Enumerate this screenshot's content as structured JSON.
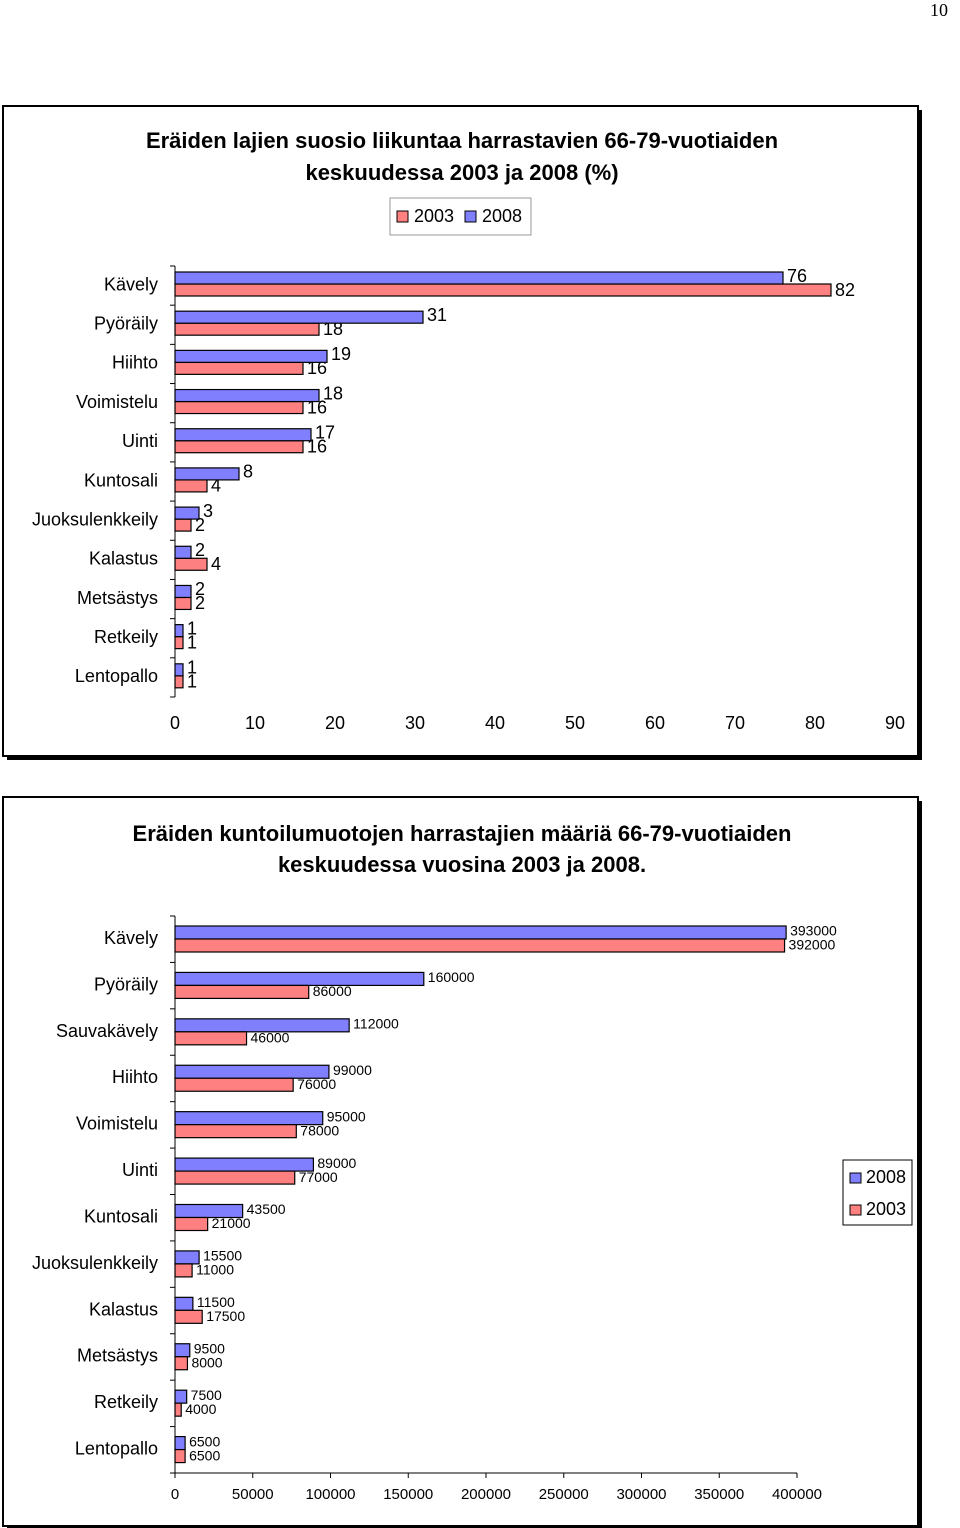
{
  "page_number": "10",
  "chart_data": [
    {
      "type": "bar",
      "orientation": "horizontal",
      "title": [
        "Eräiden lajien suosio liikuntaa harrastavien 66-79-vuotiaiden",
        "keskuudessa 2003 ja 2008 (%)"
      ],
      "categories": [
        "Kävely",
        "Pyöräily",
        "Hiihto",
        "Voimistelu",
        "Uinti",
        "Kuntosali",
        "Juoksulenkkeily",
        "Kalastus",
        "Metsästys",
        "Retkeily",
        "Lentopallo"
      ],
      "series": [
        {
          "name": "2003",
          "color": "#ff8080",
          "values": [
            82,
            18,
            16,
            16,
            16,
            4,
            2,
            4,
            2,
            1,
            1
          ]
        },
        {
          "name": "2008",
          "color": "#8080ff",
          "values": [
            76,
            31,
            19,
            18,
            17,
            8,
            3,
            2,
            2,
            1,
            1
          ]
        }
      ],
      "xlim": [
        0,
        90
      ],
      "xticks": [
        0,
        10,
        20,
        30,
        40,
        50,
        60,
        70,
        80,
        90
      ],
      "legend": "top"
    },
    {
      "type": "bar",
      "orientation": "horizontal",
      "title": [
        "Eräiden kuntoilumuotojen harrastajien määriä 66-79-vuotiaiden",
        "keskuudessa vuosina 2003 ja 2008."
      ],
      "categories": [
        "Kävely",
        "Pyöräily",
        "Sauvakävely",
        "Hiihto",
        "Voimistelu",
        "Uinti",
        "Kuntosali",
        "Juoksulenkkeily",
        "Kalastus",
        "Metsästys",
        "Retkeily",
        "Lentopallo"
      ],
      "series": [
        {
          "name": "2008",
          "color": "#8080ff",
          "values": [
            393000,
            160000,
            112000,
            99000,
            95000,
            89000,
            43500,
            15500,
            11500,
            9500,
            7500,
            6500
          ]
        },
        {
          "name": "2003",
          "color": "#ff8080",
          "values": [
            392000,
            86000,
            46000,
            76000,
            78000,
            77000,
            21000,
            11000,
            17500,
            8000,
            4000,
            6500
          ]
        }
      ],
      "xlim": [
        0,
        400000
      ],
      "xticks": [
        0,
        50000,
        100000,
        150000,
        200000,
        250000,
        300000,
        350000,
        400000
      ],
      "legend": "right"
    }
  ]
}
